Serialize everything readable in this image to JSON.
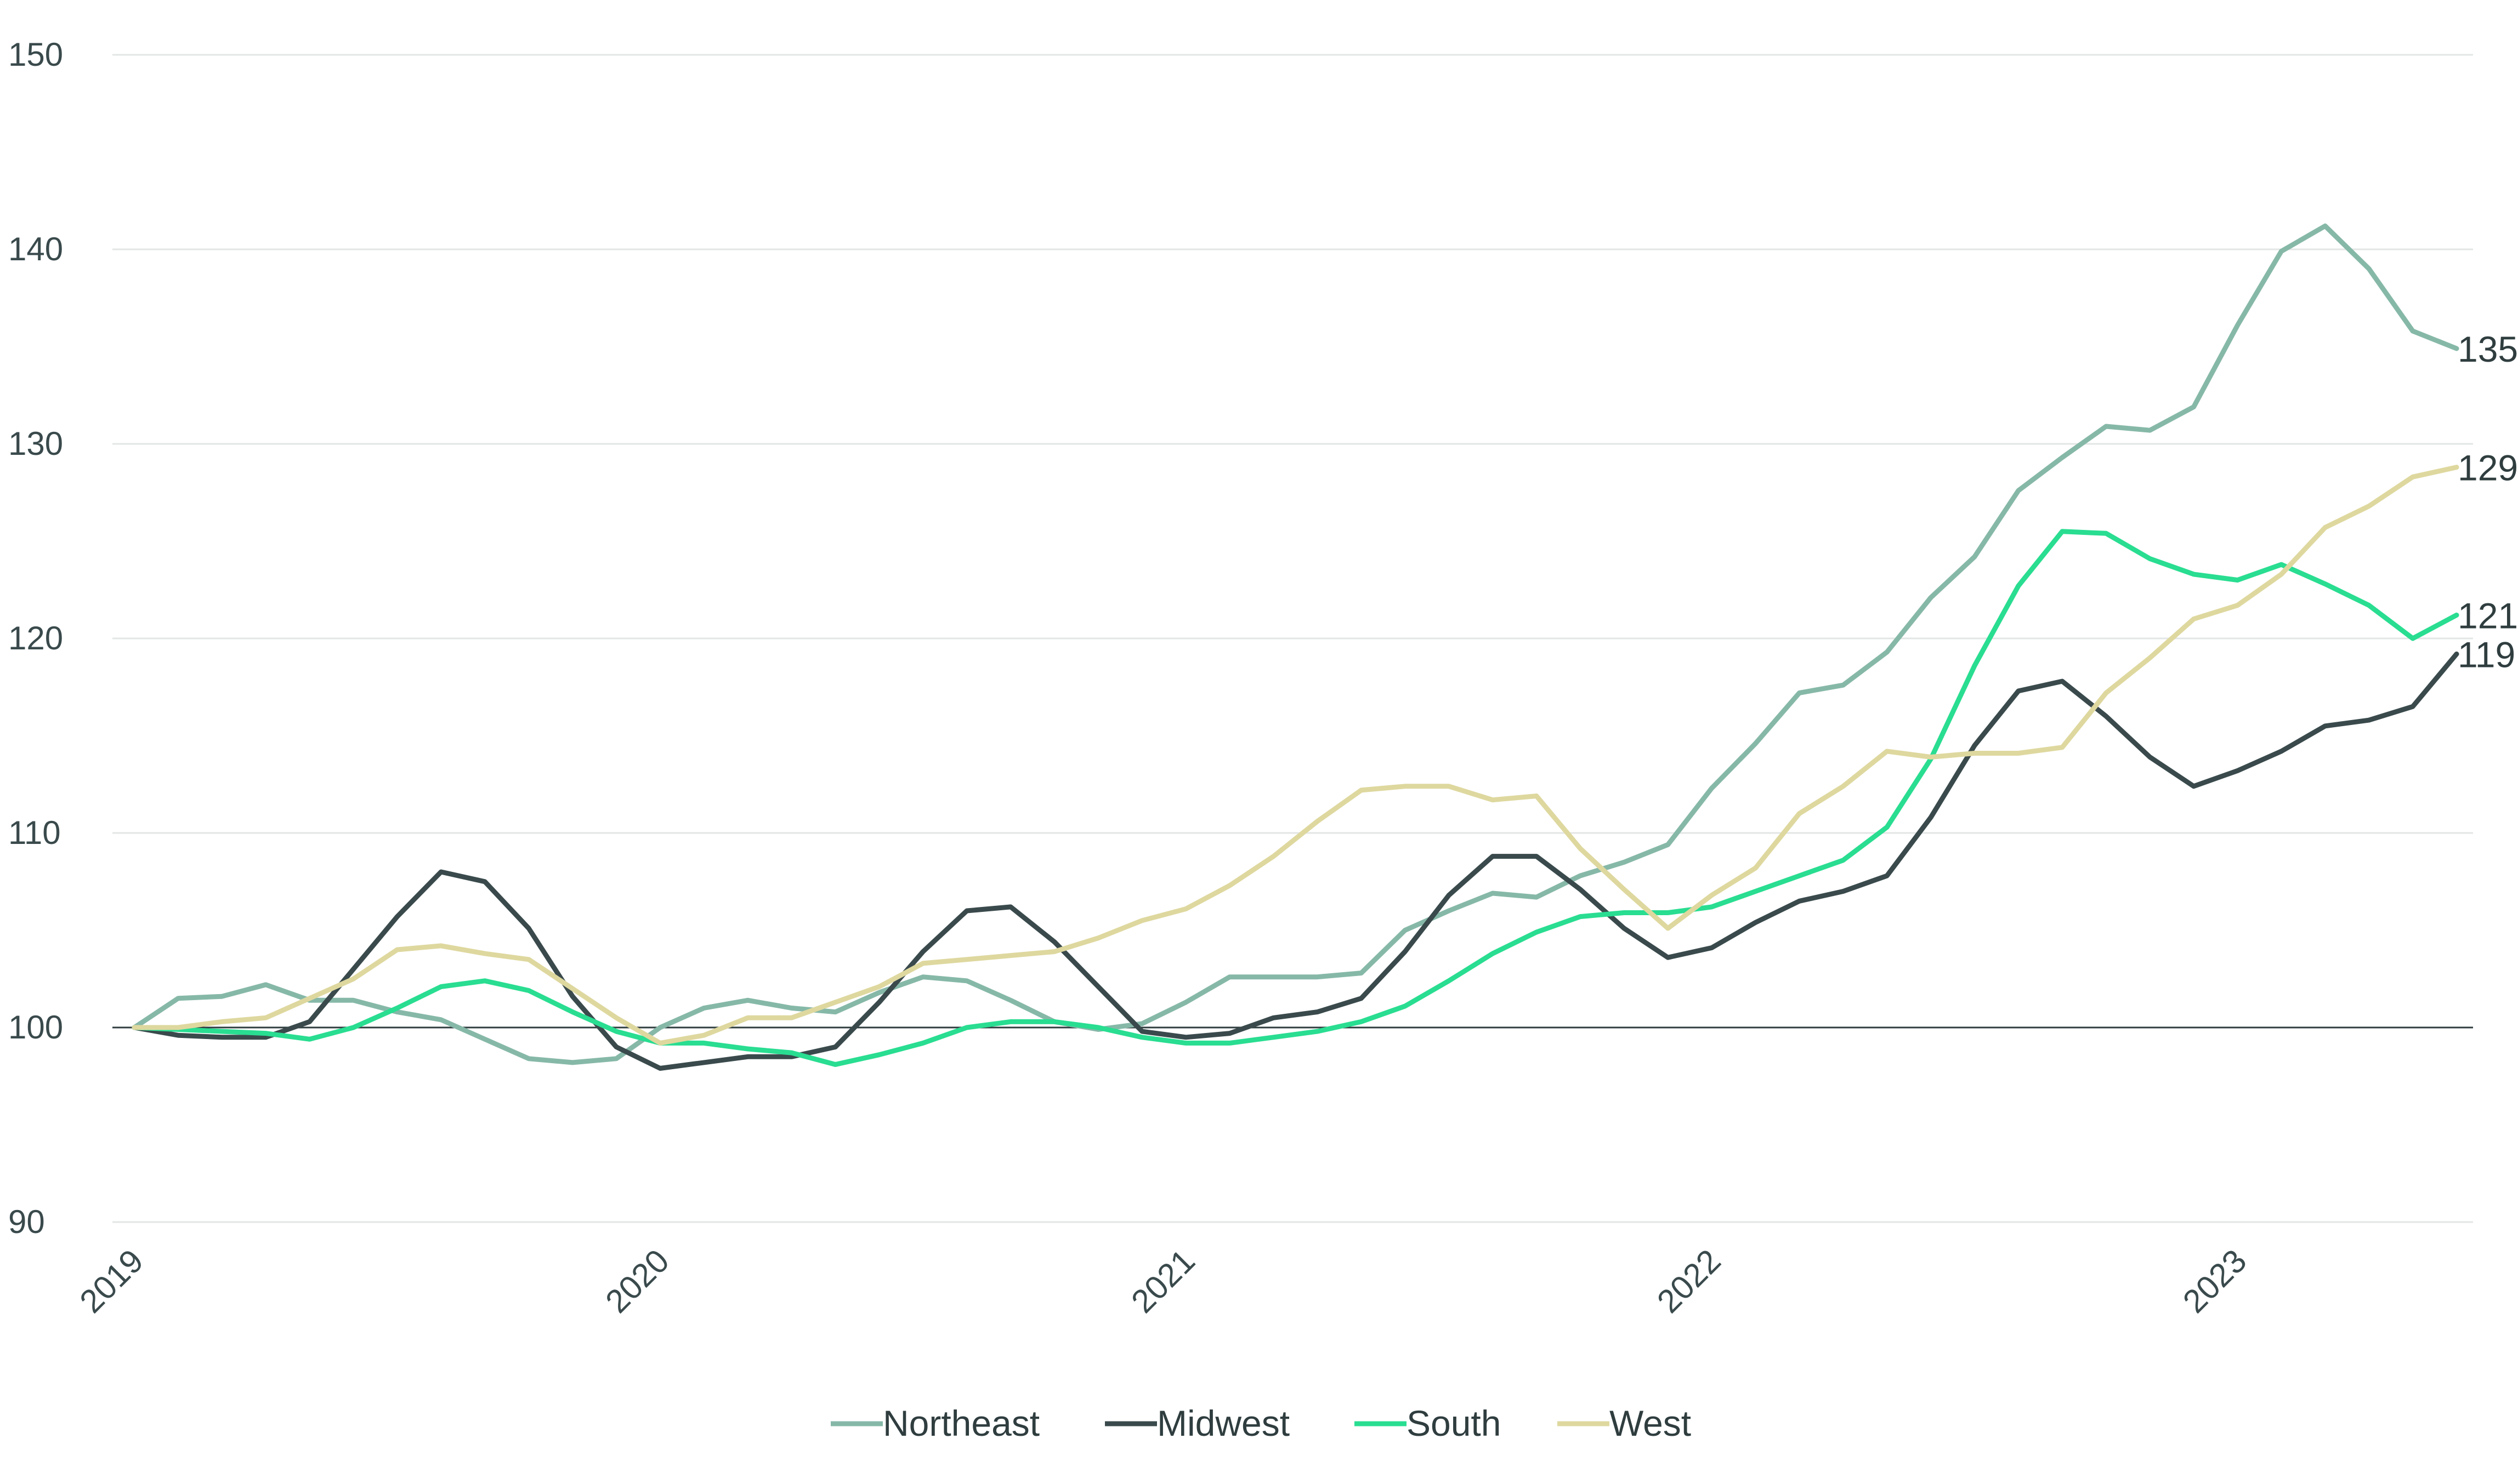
{
  "chart_data": {
    "type": "line",
    "title": "",
    "xlabel": "",
    "ylabel": "",
    "x_ticks": [
      "2019",
      "2020",
      "2021",
      "2022",
      "2023"
    ],
    "x_tick_dates": [
      "2019-01",
      "2020-01",
      "2021-01",
      "2022-01",
      "2023-01"
    ],
    "y_ticks": [
      90,
      100,
      110,
      120,
      130,
      140,
      150
    ],
    "ylim": [
      90,
      150
    ],
    "xlim": [
      "2019-01",
      "2023-06"
    ],
    "grid": "horizontal",
    "reference_line": 100,
    "legend_position": "bottom",
    "x": [
      "2019-01",
      "2019-02",
      "2019-03",
      "2019-04",
      "2019-05",
      "2019-06",
      "2019-07",
      "2019-08",
      "2019-09",
      "2019-10",
      "2019-11",
      "2019-12",
      "2020-01",
      "2020-02",
      "2020-03",
      "2020-04",
      "2020-05",
      "2020-06",
      "2020-07",
      "2020-08",
      "2020-09",
      "2020-10",
      "2020-11",
      "2020-12",
      "2021-01",
      "2021-02",
      "2021-03",
      "2021-04",
      "2021-05",
      "2021-06",
      "2021-07",
      "2021-08",
      "2021-09",
      "2021-10",
      "2021-11",
      "2021-12",
      "2022-01",
      "2022-02",
      "2022-03",
      "2022-04",
      "2022-05",
      "2022-06",
      "2022-07",
      "2022-08",
      "2022-09",
      "2022-10",
      "2022-11",
      "2022-12",
      "2023-01",
      "2023-02",
      "2023-03",
      "2023-04",
      "2023-05",
      "2023-06"
    ],
    "series": [
      {
        "name": "Northeast",
        "color": "#86b8a8",
        "end_label": "135",
        "values": [
          100,
          101.5,
          101.6,
          102.2,
          101.4,
          101.4,
          100.8,
          100.4,
          99.4,
          98.4,
          98.2,
          98.4,
          100,
          101,
          101.4,
          101,
          100.8,
          101.8,
          102.6,
          102.4,
          101.4,
          100.3,
          99.9,
          100.2,
          101.3,
          102.6,
          102.6,
          102.6,
          102.8,
          105,
          106,
          106.9,
          106.7,
          107.8,
          108.5,
          109.4,
          112.3,
          114.6,
          117.2,
          117.6,
          119.3,
          122.1,
          124.2,
          127.6,
          129.3,
          130.9,
          130.7,
          131.9,
          136.1,
          139.9,
          141.2,
          139,
          135.8,
          134.9
        ]
      },
      {
        "name": "Midwest",
        "color": "#3a4a4c",
        "end_label": "119",
        "values": [
          100,
          99.6,
          99.5,
          99.5,
          100.3,
          103,
          105.7,
          108,
          107.5,
          105.1,
          101.6,
          99,
          97.9,
          98.2,
          98.5,
          98.5,
          99,
          101.3,
          103.9,
          106,
          106.2,
          104.4,
          102.1,
          99.8,
          99.5,
          99.7,
          100.5,
          100.8,
          101.5,
          103.9,
          106.8,
          108.8,
          108.8,
          107.1,
          105.1,
          103.6,
          104.1,
          105.4,
          106.5,
          107,
          107.8,
          110.8,
          114.5,
          117.3,
          117.8,
          116,
          113.9,
          112.4,
          113.2,
          114.2,
          115.5,
          115.8,
          116.5,
          119.2
        ]
      },
      {
        "name": "South",
        "color": "#29dd91",
        "end_label": "121",
        "values": [
          100,
          99.9,
          99.8,
          99.7,
          99.4,
          100,
          101,
          102.1,
          102.4,
          101.9,
          100.8,
          99.8,
          99.2,
          99.2,
          98.9,
          98.7,
          98.1,
          98.6,
          99.2,
          100,
          100.3,
          100.3,
          100,
          99.5,
          99.2,
          99.2,
          99.5,
          99.8,
          100.3,
          101.1,
          102.4,
          103.8,
          104.9,
          105.7,
          105.9,
          105.9,
          106.2,
          107,
          107.8,
          108.6,
          110.3,
          113.8,
          118.6,
          122.7,
          125.5,
          125.4,
          124.1,
          123.3,
          123,
          123.8,
          122.8,
          121.7,
          120,
          121.2
        ]
      },
      {
        "name": "West",
        "color": "#ded89f",
        "end_label": "129",
        "values": [
          100,
          100,
          100.3,
          100.5,
          101.5,
          102.5,
          104,
          104.2,
          103.8,
          103.5,
          102,
          100.5,
          99.2,
          99.6,
          100.5,
          100.5,
          101.3,
          102.1,
          103.3,
          103.5,
          103.7,
          103.9,
          104.6,
          105.5,
          106.1,
          107.3,
          108.8,
          110.6,
          112.2,
          112.4,
          112.4,
          111.7,
          111.9,
          109.2,
          107.1,
          105.1,
          106.8,
          108.2,
          111,
          112.4,
          114.2,
          113.9,
          114.1,
          114.1,
          114.4,
          117.2,
          119,
          121,
          121.7,
          123.3,
          125.7,
          126.8,
          128.3,
          128.8
        ]
      }
    ]
  }
}
